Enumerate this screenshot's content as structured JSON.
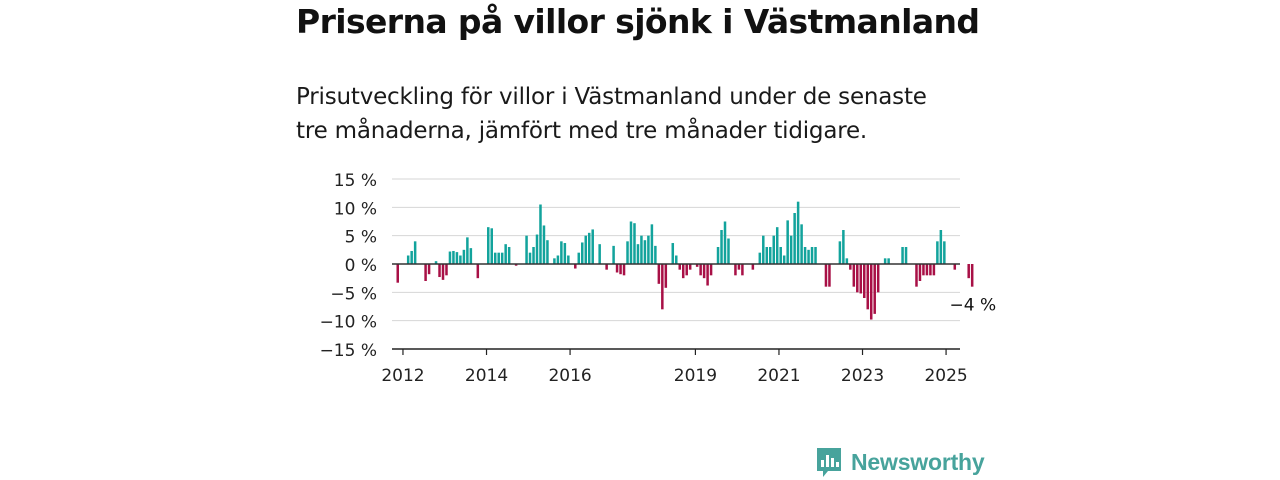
{
  "header": {
    "title": "Priserna på villor sjönk i Västmanland",
    "subtitle_lines": [
      "Prisutveckling för villor i Västmanland under de senaste",
      "tre månaderna, jämfört med tre månader tidigare."
    ]
  },
  "colors": {
    "positive": "#12a39c",
    "negative": "#a81046",
    "grid": "#d6d6d6",
    "zero_line": "#333333",
    "text": "#222222",
    "brand": "#47a39c"
  },
  "brand": {
    "name": "Newsworthy",
    "logo_icon": "bar-chart-speech-bubble-icon"
  },
  "chart_data": {
    "type": "bar",
    "title": "Priserna på villor sjönk i Västmanland",
    "subtitle": "Prisutveckling för villor i Västmanland under de senaste tre månaderna, jämfört med tre månader tidigare.",
    "xlabel": "",
    "ylabel": "",
    "x_unit": "month",
    "x_start": "2011-11",
    "x_end": "2025-04",
    "ylim": [
      -15,
      15
    ],
    "yticks": [
      15,
      10,
      5,
      0,
      -5,
      -10,
      -15
    ],
    "ytick_labels": [
      "15 %",
      "10 %",
      "5 %",
      "0 %",
      "−5 %",
      "−10 %",
      "−15 %"
    ],
    "xticks": [
      "2012",
      "2014",
      "2016",
      "2019",
      "2021",
      "2023",
      "2025"
    ],
    "grid": true,
    "annotation": {
      "text": "−4 %",
      "target": "last"
    },
    "values": [
      -3.3,
      0,
      0,
      1.5,
      2.3,
      4.0,
      0,
      0,
      -3.0,
      -1.8,
      0,
      0.5,
      -2.3,
      -2.8,
      -2.0,
      2.2,
      2.3,
      2.1,
      1.5,
      2.5,
      4.7,
      2.8,
      0,
      -2.5,
      0,
      0,
      6.5,
      6.3,
      2.0,
      2.0,
      2.0,
      3.5,
      3.0,
      0,
      -0.3,
      0,
      0,
      5.0,
      2.0,
      3.0,
      5.2,
      10.5,
      6.8,
      4.2,
      0,
      1.0,
      1.5,
      4.0,
      3.7,
      1.5,
      0,
      -0.8,
      2.0,
      3.8,
      5.0,
      5.5,
      6.1,
      0,
      3.5,
      0,
      -1.0,
      0,
      3.2,
      -1.5,
      -1.8,
      -2.0,
      4.0,
      7.5,
      7.2,
      3.5,
      5.0,
      4.2,
      5.0,
      7.0,
      3.2,
      -3.5,
      -8.0,
      -4.2,
      0,
      3.7,
      1.5,
      -1.0,
      -2.5,
      -2.0,
      -1.0,
      0,
      -0.5,
      -2.0,
      -2.5,
      -3.8,
      -2.0,
      0,
      3.0,
      6.0,
      7.5,
      4.5,
      0,
      -2.0,
      -1.0,
      -2.0,
      0,
      0,
      -1.0,
      0,
      2.0,
      5.0,
      3.0,
      3.0,
      5.0,
      6.5,
      3.0,
      1.5,
      7.7,
      5.0,
      9.0,
      11.0,
      7.0,
      3.0,
      2.5,
      3.0,
      3.0,
      0,
      0,
      -4.0,
      -4.0,
      0,
      0,
      4.0,
      6.0,
      1.0,
      -1.0,
      -4.0,
      -5.0,
      -5.2,
      -6.0,
      -8.0,
      -9.8,
      -8.8,
      -5.0,
      0,
      1.0,
      1.0,
      0,
      0,
      0,
      3.0,
      3.0,
      0,
      0,
      -4.0,
      -3.0,
      -2.0,
      -2.0,
      -2.0,
      -2.0,
      4.0,
      6.0,
      4.0,
      0,
      0,
      -1.0,
      0,
      0,
      0,
      -2.5,
      -4.0
    ]
  }
}
